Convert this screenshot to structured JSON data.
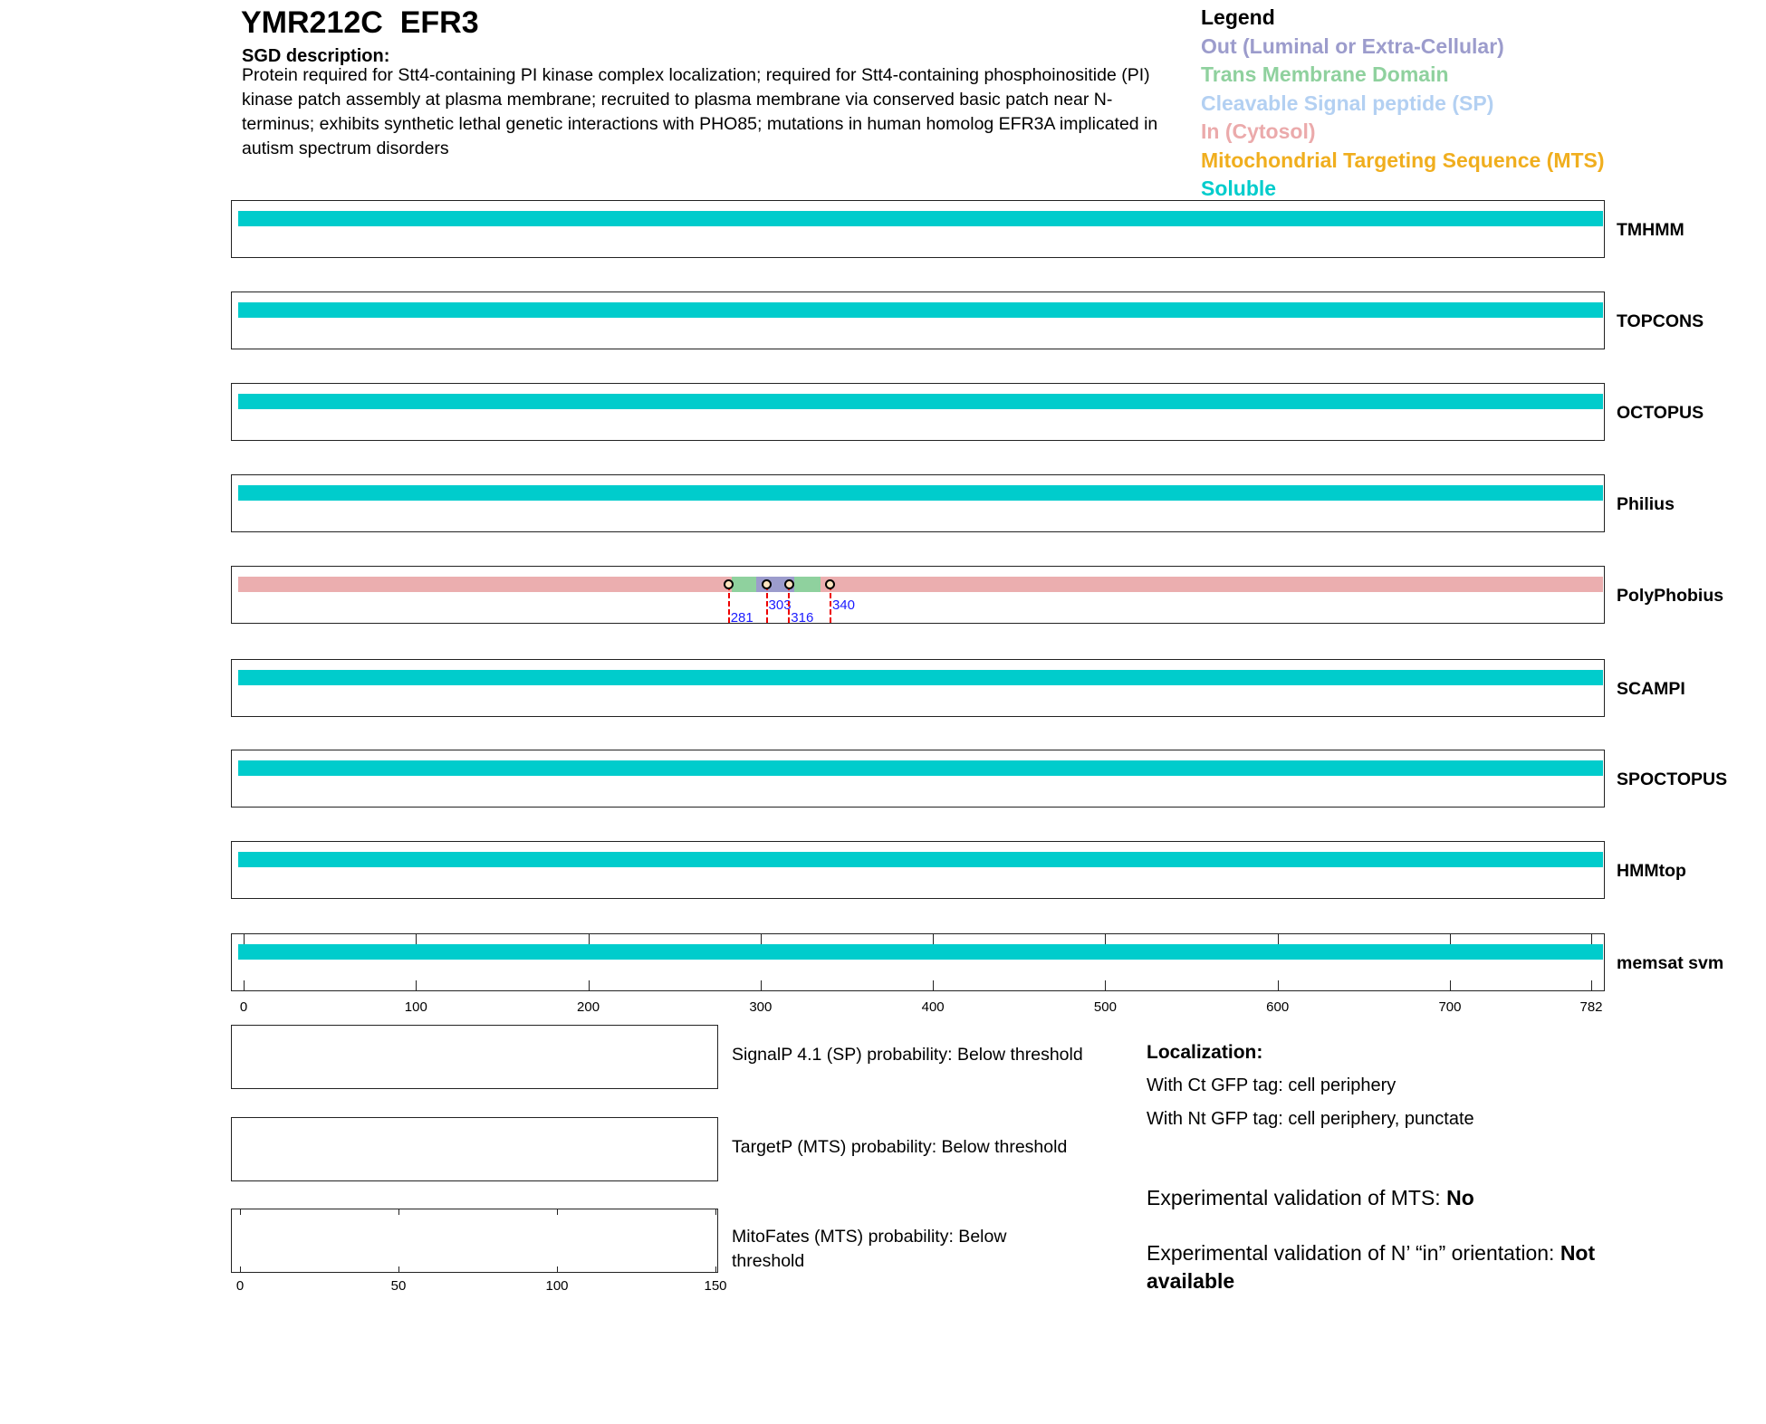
{
  "header": {
    "title": "YMR212C  EFR3",
    "desc_label": "SGD description:",
    "description": "Protein required for Stt4-containing PI kinase complex localization; required for Stt4-containing phosphoinositide (PI) kinase patch assembly at plasma membrane; recruited to plasma membrane via conserved basic patch near N-terminus; exhibits synthetic lethal genetic interactions with PHO85; mutations in human homolog EFR3A implicated in autism spectrum disorders"
  },
  "legend": {
    "title": "Legend",
    "items": [
      {
        "label": "Out (Luminal or Extra-Cellular)",
        "color": "#9c9ccc"
      },
      {
        "label": "Trans Membrane Domain",
        "color": "#8fd19e"
      },
      {
        "label": "Cleavable Signal peptide (SP)",
        "color": "#b3d0f2"
      },
      {
        "label": "In (Cytosol)",
        "color": "#ebaaab"
      },
      {
        "label": "Mitochondrial Targeting Sequence (MTS)",
        "color": "#f0ae1e"
      },
      {
        "label": "Soluble",
        "color": "#00cccc"
      }
    ]
  },
  "protein_length": 782,
  "tracks": [
    {
      "name": "TMHMM",
      "segments": [
        {
          "type": "soluble",
          "start": 1,
          "end": 782
        }
      ]
    },
    {
      "name": "TOPCONS",
      "segments": [
        {
          "type": "soluble",
          "start": 1,
          "end": 782
        }
      ]
    },
    {
      "name": "OCTOPUS",
      "segments": [
        {
          "type": "soluble",
          "start": 1,
          "end": 782
        }
      ]
    },
    {
      "name": "Philius",
      "segments": [
        {
          "type": "soluble",
          "start": 1,
          "end": 782
        }
      ]
    },
    {
      "name": "PolyPhobius",
      "segments": [
        {
          "type": "in",
          "start": 1,
          "end": 283
        },
        {
          "type": "tm",
          "start": 283,
          "end": 297
        },
        {
          "type": "out",
          "start": 297,
          "end": 319
        },
        {
          "type": "tm",
          "start": 319,
          "end": 334
        },
        {
          "type": "in",
          "start": 334,
          "end": 782
        }
      ],
      "markers": [
        281,
        303,
        316,
        340
      ]
    },
    {
      "name": "SCAMPI",
      "segments": [
        {
          "type": "soluble",
          "start": 1,
          "end": 782
        }
      ]
    },
    {
      "name": "SPOCTOPUS",
      "segments": [
        {
          "type": "soluble",
          "start": 1,
          "end": 782
        }
      ]
    },
    {
      "name": "HMMtop",
      "segments": [
        {
          "type": "soluble",
          "start": 1,
          "end": 782
        }
      ]
    },
    {
      "name": "memsat svm",
      "segments": [
        {
          "type": "soluble",
          "start": 1,
          "end": 782
        }
      ]
    }
  ],
  "axis_ticks": [
    "0",
    "100",
    "200",
    "300",
    "400",
    "500",
    "600",
    "700",
    "782"
  ],
  "prob_panels": [
    {
      "label": "SignalP 4.1 (SP) probability: Below threshold"
    },
    {
      "label": "TargetP (MTS) probability: Below threshold"
    },
    {
      "label": "MitoFates (MTS) probability: Below threshold"
    }
  ],
  "prob_axis_ticks": [
    "0",
    "50",
    "100",
    "150"
  ],
  "localization": {
    "title": "Localization:",
    "ct": "With Ct GFP tag: cell periphery",
    "nt": "With Nt GFP tag: cell periphery, punctate",
    "mts_label": "Experimental validation of MTS: ",
    "mts_value": "No",
    "orient_label": "Experimental validation of N’ “in” orientation: ",
    "orient_value": "Not available"
  },
  "colors": {
    "soluble": "#00cccc",
    "in": "#ebaeaf",
    "tm": "#8fd19e",
    "out": "#9c9ccc"
  }
}
